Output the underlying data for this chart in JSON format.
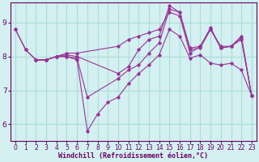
{
  "xlabel": "Windchill (Refroidissement éolien,°C)",
  "bg_color": "#d4f0f0",
  "line_color": "#993399",
  "grid_color": "#aadddd",
  "axis_color": "#660066",
  "xlim": [
    -0.5,
    23.5
  ],
  "ylim": [
    5.5,
    9.6
  ],
  "yticks": [
    6,
    7,
    8,
    9
  ],
  "xticks": [
    0,
    1,
    2,
    3,
    4,
    5,
    6,
    7,
    8,
    9,
    10,
    11,
    12,
    13,
    14,
    15,
    16,
    17,
    18,
    19,
    20,
    21,
    22,
    23
  ],
  "lines": [
    {
      "x": [
        0,
        1,
        2,
        3,
        4,
        5,
        6,
        10,
        11,
        12,
        13,
        14,
        15,
        16,
        17,
        18,
        19,
        20,
        21,
        22,
        23
      ],
      "y": [
        8.8,
        8.2,
        7.9,
        7.9,
        8.0,
        8.1,
        8.1,
        8.3,
        8.5,
        8.6,
        8.7,
        8.8,
        9.3,
        9.2,
        8.1,
        8.3,
        8.8,
        8.3,
        8.3,
        8.6,
        6.85
      ]
    },
    {
      "x": [
        0,
        1,
        2,
        3,
        4,
        5,
        6,
        10,
        11,
        12,
        13,
        14,
        15,
        16,
        17,
        18,
        19,
        20,
        21,
        22,
        23
      ],
      "y": [
        8.8,
        8.2,
        7.9,
        7.9,
        8.0,
        8.05,
        8.0,
        7.5,
        7.7,
        8.2,
        8.5,
        8.6,
        9.5,
        9.3,
        8.25,
        8.3,
        8.85,
        8.25,
        8.3,
        8.55,
        6.85
      ]
    },
    {
      "x": [
        2,
        3,
        4,
        5,
        6,
        7,
        10,
        11,
        12,
        13,
        14,
        15,
        16,
        17,
        18,
        19,
        20,
        21,
        22,
        23
      ],
      "y": [
        7.9,
        7.9,
        8.0,
        8.0,
        7.95,
        6.8,
        7.35,
        7.6,
        7.75,
        8.1,
        8.4,
        9.4,
        9.3,
        8.2,
        8.25,
        8.8,
        8.25,
        8.3,
        8.5,
        6.85
      ]
    },
    {
      "x": [
        2,
        3,
        4,
        5,
        6,
        7,
        8,
        9,
        10,
        11,
        12,
        13,
        14,
        15,
        16,
        17,
        18,
        19,
        20,
        21,
        22,
        23
      ],
      "y": [
        7.9,
        7.9,
        8.0,
        8.0,
        7.9,
        5.8,
        6.3,
        6.65,
        6.8,
        7.2,
        7.5,
        7.75,
        8.05,
        8.8,
        8.6,
        7.95,
        8.05,
        7.8,
        7.75,
        7.8,
        7.6,
        6.85
      ]
    }
  ]
}
